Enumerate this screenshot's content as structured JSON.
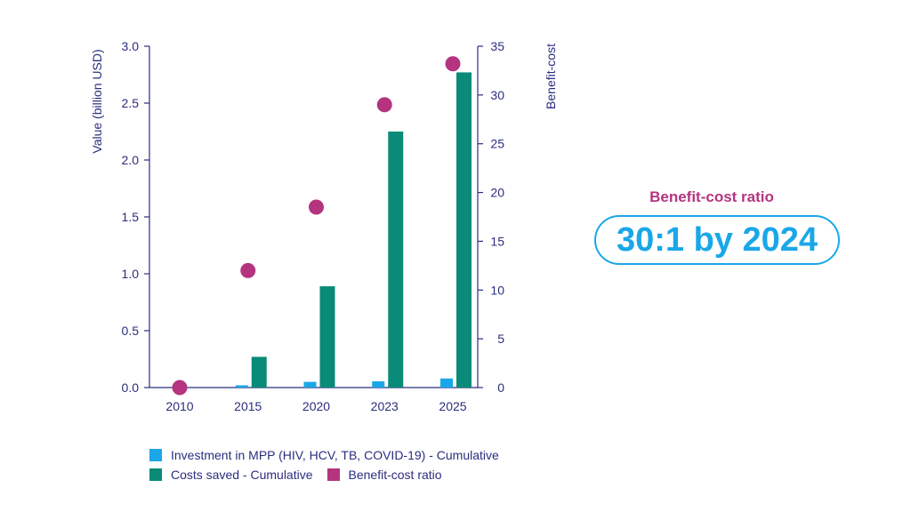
{
  "chart_data": {
    "type": "bar",
    "categories": [
      "2010",
      "2015",
      "2020",
      "2023",
      "2025"
    ],
    "series": [
      {
        "name": "Investment in MPP (HIV, HCV, TB, COVID-19) - Cumulative",
        "type": "bar",
        "axis": "left",
        "values": [
          0.0,
          0.02,
          0.05,
          0.055,
          0.08
        ],
        "color": "#1aa7e8"
      },
      {
        "name": "Costs saved - Cumulative",
        "type": "bar",
        "axis": "left",
        "values": [
          0.0,
          0.27,
          0.89,
          2.25,
          2.77
        ],
        "color": "#0a8a78"
      },
      {
        "name": "Benefit-cost ratio",
        "type": "scatter",
        "axis": "right",
        "values": [
          0,
          12,
          18.5,
          29,
          33.2
        ],
        "color": "#b4347f"
      }
    ],
    "ylabel": "Value (billion USD)",
    "y2label": "Benefit-cost",
    "ylim": [
      0,
      3.0
    ],
    "y2lim": [
      0,
      35
    ],
    "yticks": [
      "0.0",
      "0.5",
      "1.0",
      "1.5",
      "2.0",
      "2.5",
      "3.0"
    ],
    "y2ticks": [
      "0",
      "5",
      "10",
      "15",
      "20",
      "25",
      "30",
      "35"
    ],
    "grid": false,
    "legend_position": "bottom-left",
    "axis_color": "#2b2d7e"
  },
  "callout": {
    "title": "Benefit-cost ratio",
    "value": "30:1 by 2024"
  }
}
